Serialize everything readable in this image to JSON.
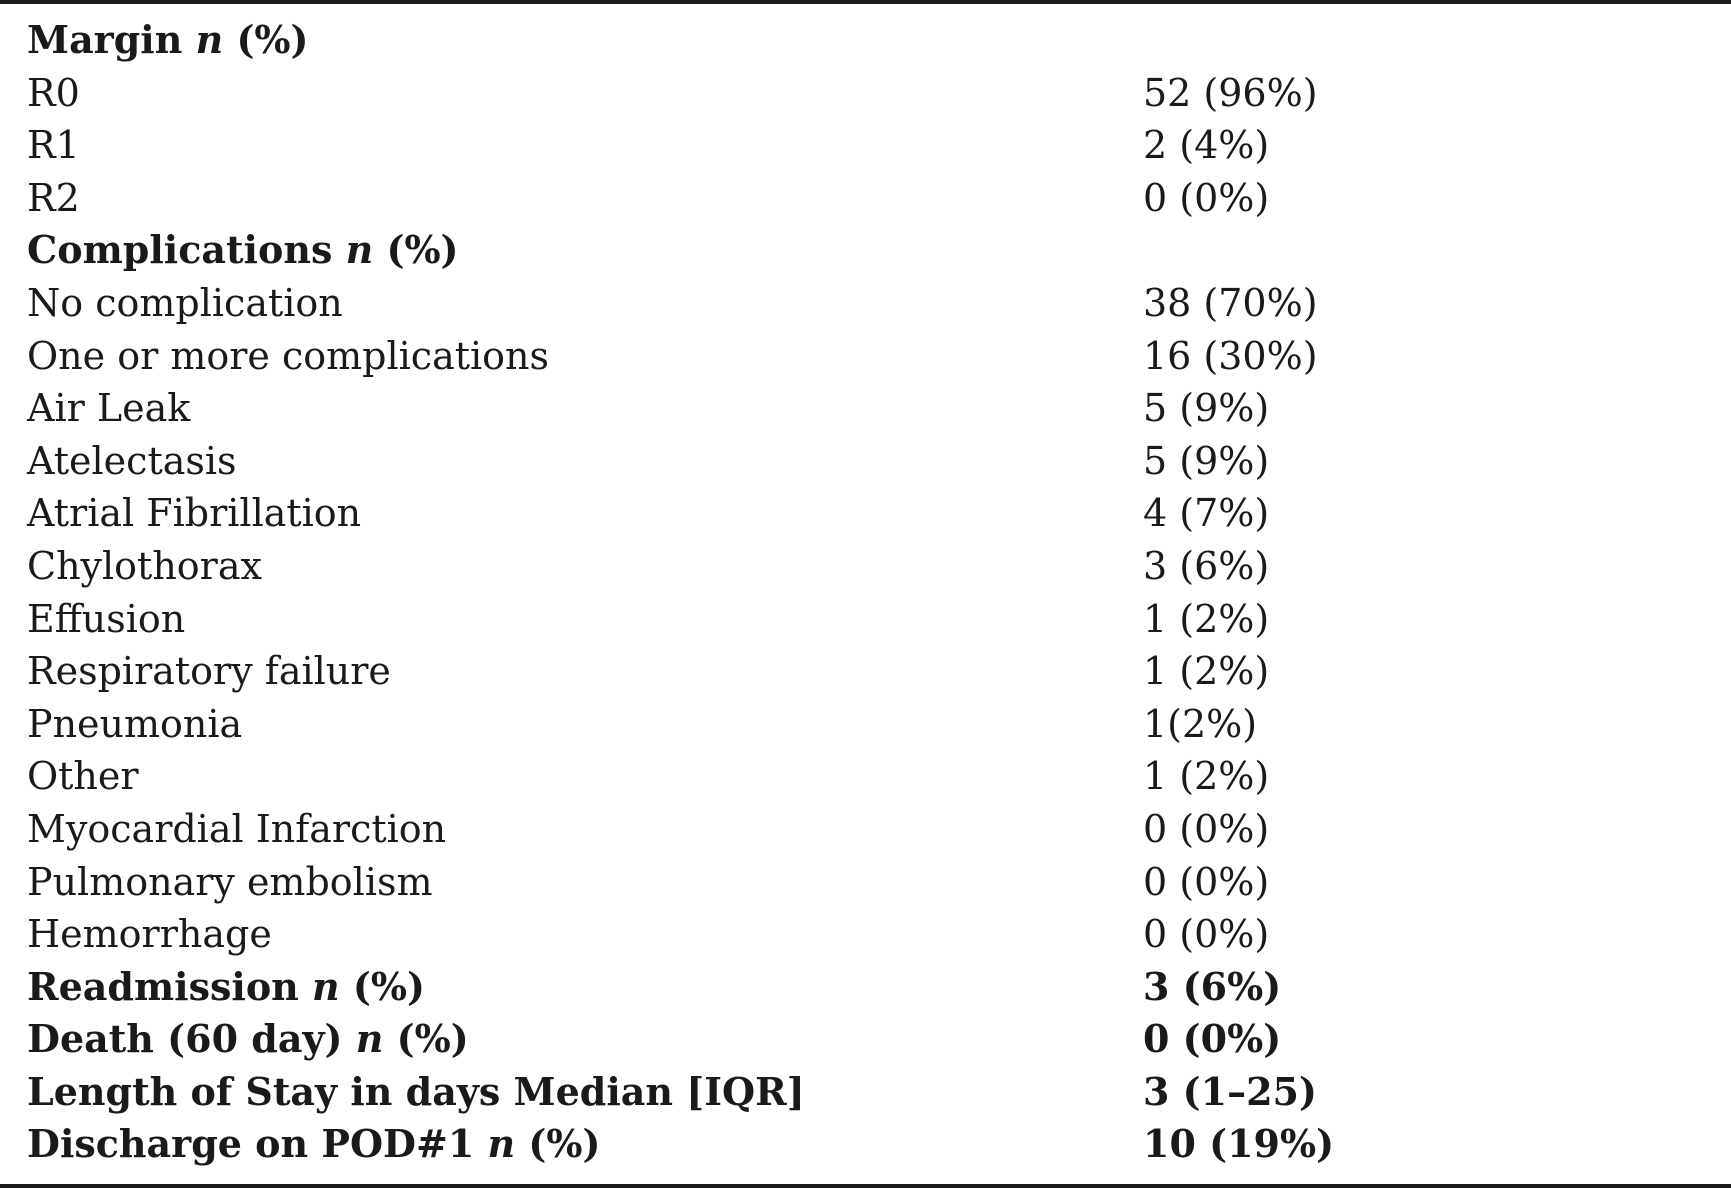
{
  "table": {
    "rows": [
      {
        "label": "Margin",
        "n": "n",
        "suffix": "(%)",
        "value": "",
        "header": true
      },
      {
        "label": "R0",
        "value": "52 (96%)",
        "header": false
      },
      {
        "label": "R1",
        "value": "2 (4%)",
        "header": false
      },
      {
        "label": "R2",
        "value": "0 (0%)",
        "header": false
      },
      {
        "label": "Complications",
        "n": "n",
        "suffix": "(%)",
        "value": "",
        "header": true
      },
      {
        "label": "No complication",
        "value": "38 (70%)",
        "header": false
      },
      {
        "label": "One or more complications",
        "value": "16 (30%)",
        "header": false
      },
      {
        "label": "Air Leak",
        "value": "5 (9%)",
        "header": false
      },
      {
        "label": "Atelectasis",
        "value": "5 (9%)",
        "header": false
      },
      {
        "label": "Atrial Fibrillation",
        "value": "4 (7%)",
        "header": false
      },
      {
        "label": "Chylothorax",
        "value": "3 (6%)",
        "header": false
      },
      {
        "label": "Effusion",
        "value": "1 (2%)",
        "header": false
      },
      {
        "label": "Respiratory failure",
        "value": "1 (2%)",
        "header": false
      },
      {
        "label": "Pneumonia",
        "value": "1(2%)",
        "header": false
      },
      {
        "label": "Other",
        "value": "1 (2%)",
        "header": false
      },
      {
        "label": "Myocardial Infarction",
        "value": "0 (0%)",
        "header": false
      },
      {
        "label": "Pulmonary embolism",
        "value": "0 (0%)",
        "header": false
      },
      {
        "label": "Hemorrhage",
        "value": "0 (0%)",
        "header": false
      },
      {
        "label": "Readmission",
        "n": "n",
        "suffix": "(%)",
        "value": "3 (6%)",
        "header": true
      },
      {
        "label": "Death (60 day)",
        "n": "n",
        "suffix": "(%)",
        "value": "0 (0%)",
        "header": true
      },
      {
        "label": "Length of Stay in days Median [IQR]",
        "value": "3 (1–25)",
        "header": true
      },
      {
        "label": "Discharge on POD#1",
        "n": "n",
        "suffix": "(%)",
        "value": "10 (19%)",
        "header": true
      }
    ]
  }
}
